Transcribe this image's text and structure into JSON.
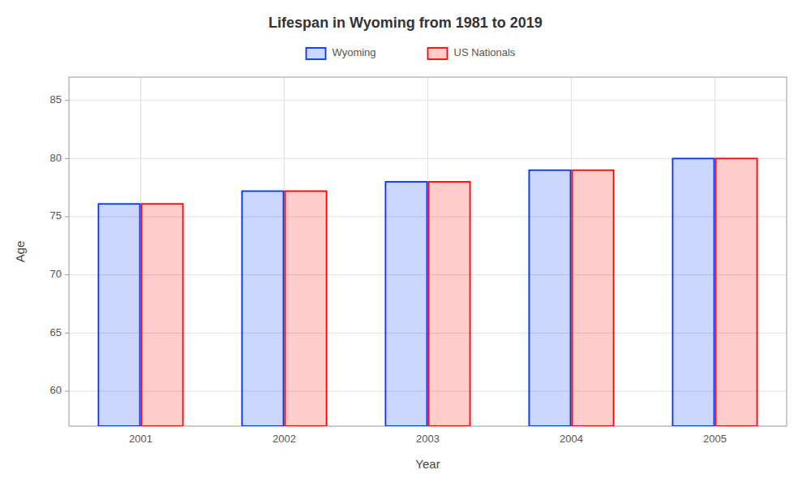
{
  "chart_data": {
    "type": "bar",
    "title": "Lifespan in Wyoming from 1981 to 2019",
    "xlabel": "Year",
    "ylabel": "Age",
    "categories": [
      "2001",
      "2002",
      "2003",
      "2004",
      "2005"
    ],
    "series": [
      {
        "name": "Wyoming",
        "color": "#0033ff",
        "values": [
          76.1,
          77.2,
          78.0,
          79.0,
          80.0
        ]
      },
      {
        "name": "US Nationals",
        "color": "#ff0000",
        "values": [
          76.1,
          77.2,
          78.0,
          79.0,
          80.0
        ]
      }
    ],
    "ylim": [
      57,
      87
    ],
    "yticks": [
      60,
      65,
      70,
      75,
      80,
      85
    ],
    "grid": true,
    "legend": "top"
  }
}
